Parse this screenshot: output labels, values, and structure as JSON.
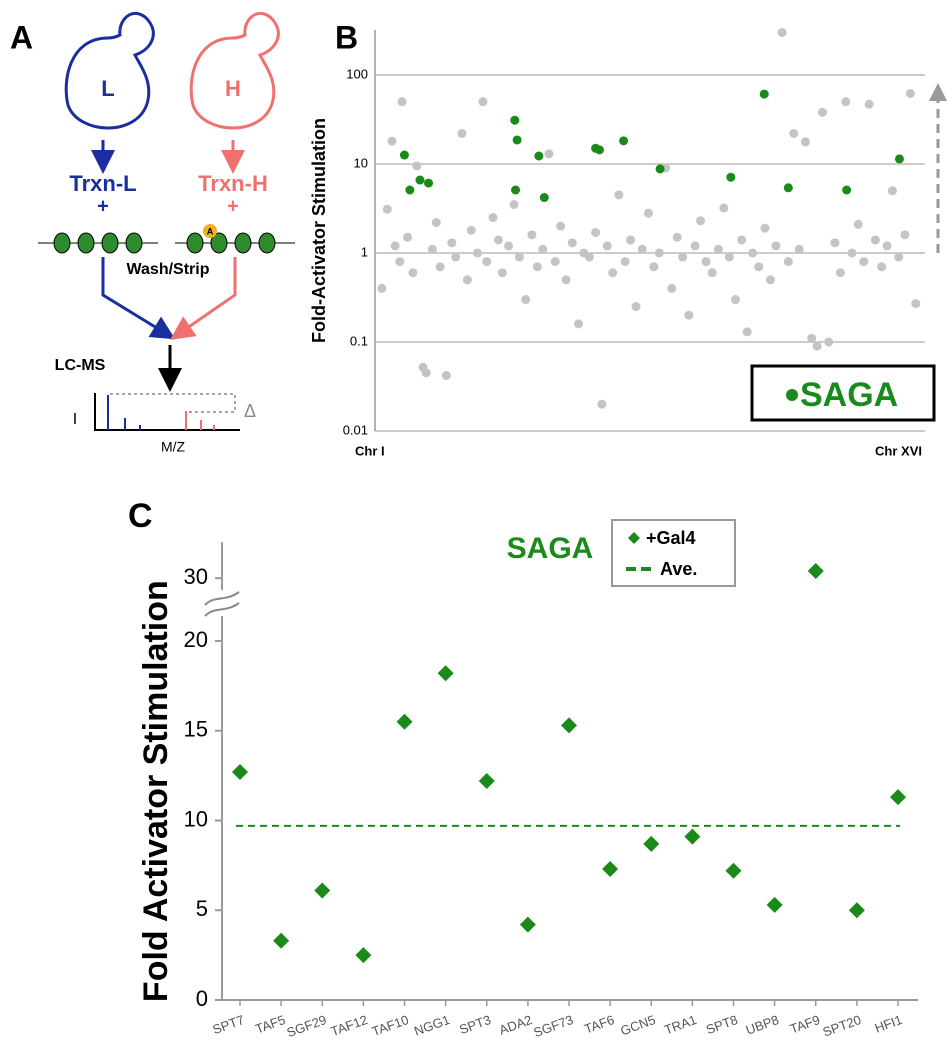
{
  "diagram": {
    "panel_label": "A",
    "left_cell": "L",
    "right_cell": "H",
    "left_reaction": "Trxn-L",
    "left_plus": "+",
    "right_reaction": "Trxn-H",
    "right_plus": "+",
    "acetyl_mark": "A",
    "wash_step": "Wash/Strip",
    "ms_step": "LC-MS",
    "ms_y_axis": "I",
    "ms_delta": "Δ",
    "ms_x_axis": "M/Z"
  },
  "chart_data": [
    {
      "type": "scatter",
      "panel_label": "B",
      "y_label": "Fold-Activator Stimulation",
      "x_start_label": "Chr I",
      "x_end_label": "Chr XVI",
      "log_y": true,
      "grid": true,
      "legend_position": "lower right",
      "xlim": [
        0,
        700
      ],
      "ylim": [
        0.01,
        320
      ],
      "yticks": [
        0.01,
        0.1,
        1,
        10,
        100
      ],
      "series": [
        {
          "color": "#c4c4c4",
          "x": [
            5,
            12,
            18,
            22,
            28,
            31,
            38,
            45,
            50,
            58,
            62,
            70,
            75,
            80,
            88,
            95,
            100,
            108,
            115,
            120,
            128,
            135,
            140,
            148,
            155,
            160,
            168,
            175,
            182,
            190,
            198,
            205,
            212,
            220,
            228,
            235,
            242,
            250,
            258,
            265,
            272,
            280,
            288,
            295,
            302,
            310,
            318,
            325,
            332,
            340,
            348,
            355,
            362,
            370,
            378,
            385,
            392,
            400,
            408,
            415,
            422,
            430,
            438,
            445,
            452,
            460,
            468,
            475,
            482,
            490,
            498,
            505,
            512,
            520,
            528,
            535,
            542,
            550,
            558,
            565,
            572,
            580,
            588,
            595,
            602,
            610,
            618,
            625,
            632,
            640,
            648,
            655,
            662,
            670,
            678,
            685,
            692
          ],
          "values": [
            0.4,
            3.1,
            18,
            1.2,
            0.8,
            50,
            1.5,
            0.6,
            9.5,
            0.052,
            0.045,
            1.1,
            2.2,
            0.7,
            0.042,
            1.3,
            0.9,
            22,
            0.5,
            1.8,
            1.0,
            50,
            0.8,
            2.5,
            1.4,
            0.6,
            1.2,
            3.5,
            0.9,
            0.3,
            1.6,
            0.7,
            1.1,
            13,
            0.8,
            2.0,
            0.5,
            1.3,
            0.16,
            1.0,
            0.9,
            1.7,
            0.02,
            1.2,
            0.6,
            4.5,
            0.8,
            1.4,
            0.25,
            1.1,
            2.8,
            0.7,
            1.0,
            9,
            0.4,
            1.5,
            0.9,
            0.2,
            1.2,
            2.3,
            0.8,
            0.6,
            1.1,
            3.2,
            0.9,
            0.3,
            1.4,
            0.13,
            1.0,
            0.7,
            1.9,
            0.5,
            1.2,
            300,
            0.8,
            22,
            1.1,
            17.7,
            0.11,
            0.09,
            38,
            0.1,
            1.3,
            0.6,
            50,
            1.0,
            2.1,
            0.8,
            47,
            1.4,
            0.7,
            1.2,
            5.0,
            0.9,
            1.6,
            62,
            0.27
          ]
        },
        {
          "name": "SAGA",
          "color": "#1a8a1a",
          "x": [
            34,
            41,
            54,
            65,
            176,
            179,
            177,
            207,
            214,
            280,
            285,
            316,
            363,
            454,
            497,
            528,
            603,
            671
          ],
          "values": [
            12.6,
            5.1,
            6.6,
            6.1,
            31,
            18.6,
            5.1,
            12.3,
            4.2,
            15,
            14.4,
            18.2,
            8.8,
            7.1,
            61,
            5.4,
            5.1,
            11.4
          ]
        }
      ]
    },
    {
      "type": "scatter",
      "panel_label": "C",
      "title": "SAGA",
      "y_label": "Fold Activator Stimulation",
      "legend_position": "upper right",
      "categories": [
        "SPT7",
        "TAF5",
        "SGF29",
        "TAF12",
        "TAF10",
        "NGG1",
        "SPT3",
        "ADA2",
        "SGF73",
        "TAF6",
        "GCN5",
        "TRA1",
        "SPT8",
        "UBP8",
        "TAF9",
        "SPT20",
        "HFI1"
      ],
      "ylim": [
        0,
        32
      ],
      "y_break": [
        21.5,
        28
      ],
      "yticks": [
        0,
        5,
        10,
        15,
        20,
        30
      ],
      "series": [
        {
          "name": "+Gal4",
          "color": "#1a8a1a",
          "values": [
            12.7,
            3.3,
            6.1,
            2.5,
            15.5,
            18.2,
            12.2,
            4.2,
            15.3,
            7.3,
            8.7,
            9.1,
            7.2,
            5.3,
            30.4,
            5.0,
            11.3
          ]
        }
      ],
      "reference_lines": [
        {
          "name": "Ave.",
          "value": 9.7,
          "color": "#1a8a1a"
        }
      ]
    }
  ]
}
